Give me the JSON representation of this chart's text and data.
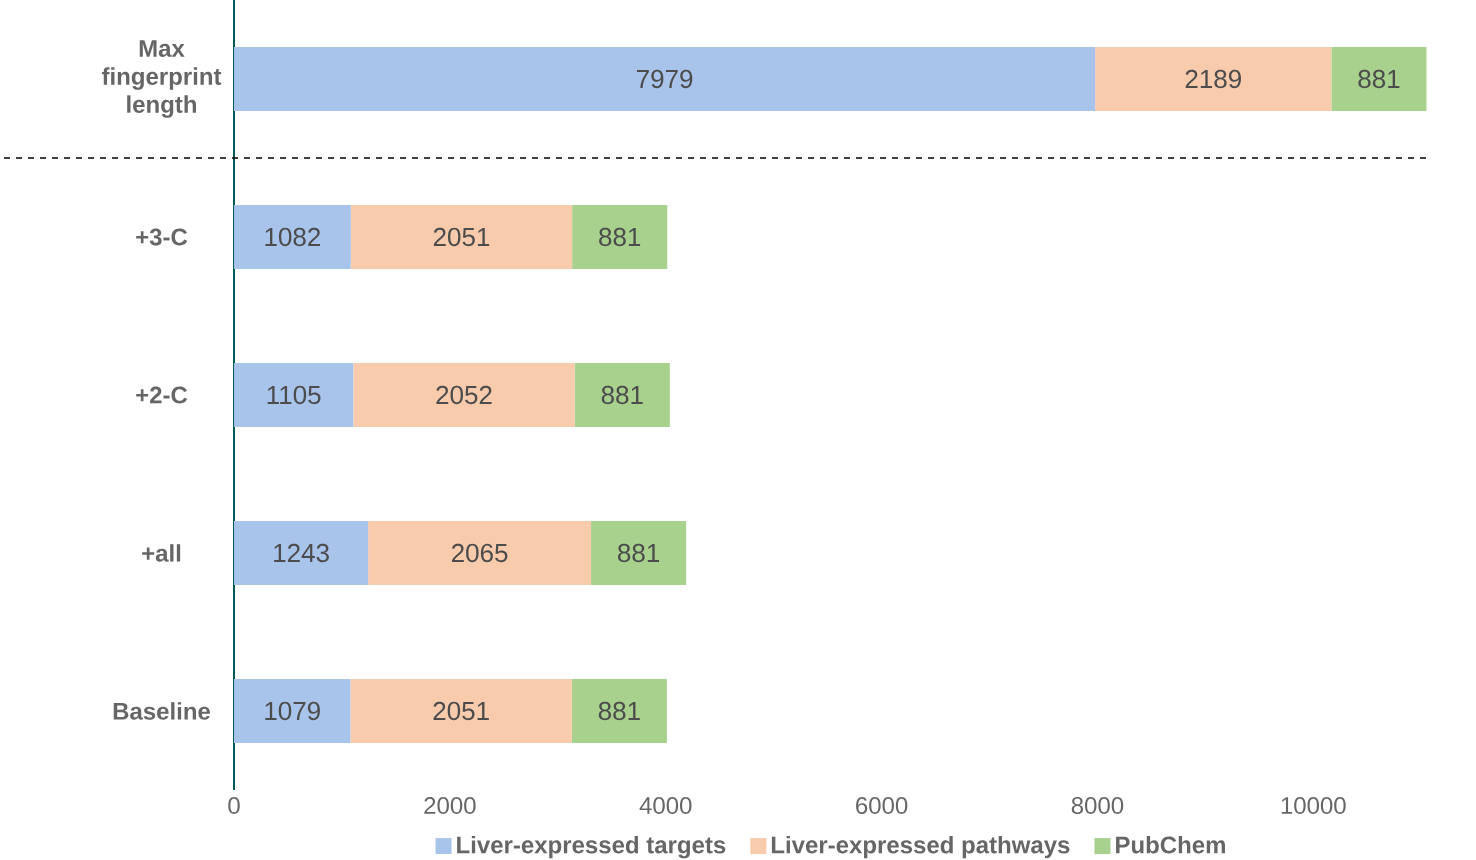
{
  "chart_data": {
    "type": "bar",
    "orientation": "horizontal",
    "stacked": true,
    "categories": [
      "Max fingerprint length",
      "+3-C",
      "+2-C",
      "+all",
      "Baseline"
    ],
    "series": [
      {
        "name": "Liver-expressed targets",
        "color": "#a9c4eb",
        "values": [
          7979,
          1082,
          1105,
          1243,
          1079
        ]
      },
      {
        "name": "Liver-expressed pathways",
        "color": "#f8cbad",
        "values": [
          2189,
          2051,
          2052,
          2065,
          2051
        ]
      },
      {
        "name": "PubChem",
        "color": "#a9d18e",
        "values": [
          881,
          881,
          881,
          881,
          881
        ]
      }
    ],
    "xlim": [
      0,
      11100
    ],
    "xticks": [
      0,
      2000,
      4000,
      6000,
      8000,
      10000
    ],
    "data_labels": true,
    "legend": "bottom",
    "grid": false
  }
}
